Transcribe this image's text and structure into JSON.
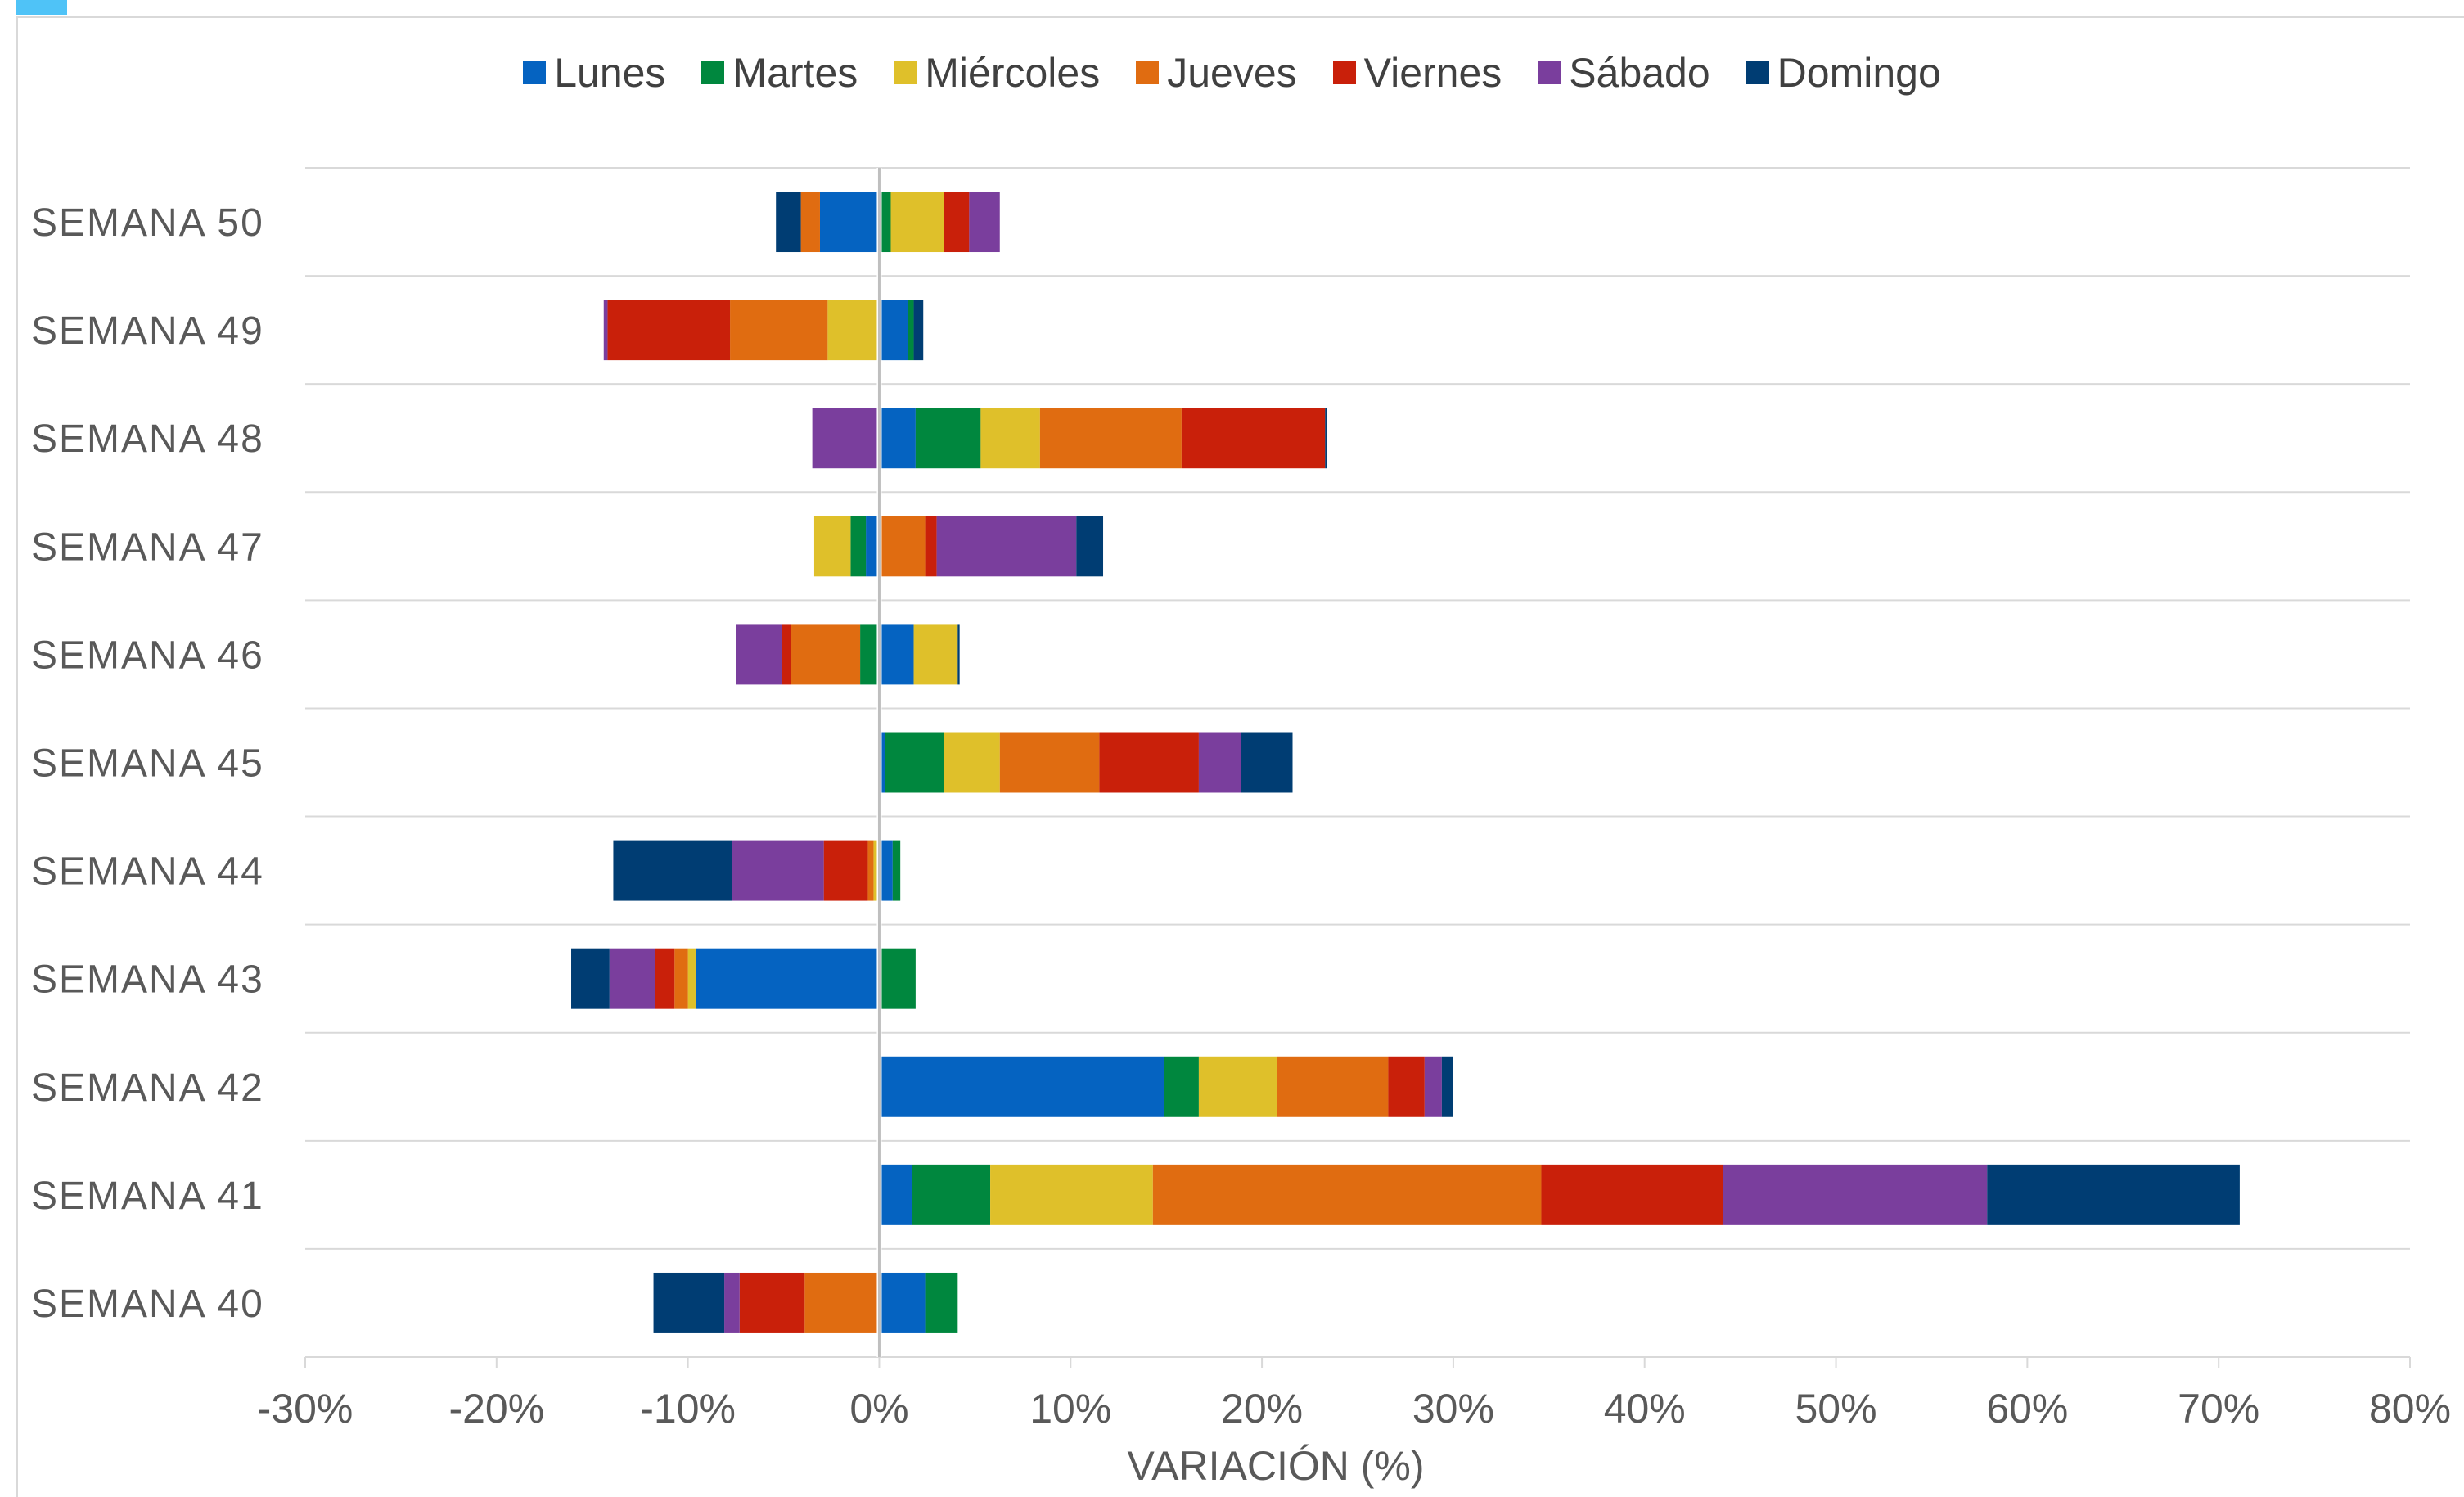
{
  "chart_data": {
    "type": "bar",
    "orientation": "horizontal",
    "stacked": true,
    "title": "",
    "xlabel": "VARIACIÓN (%)",
    "ylabel": "",
    "xlim": [
      -30,
      80
    ],
    "xticks": [
      "-30%",
      "-20%",
      "-10%",
      "0%",
      "10%",
      "20%",
      "30%",
      "40%",
      "50%",
      "60%",
      "70%",
      "80%"
    ],
    "grid": true,
    "legend_position": "top",
    "categories": [
      "SEMANA 50",
      "SEMANA 49",
      "SEMANA 48",
      "SEMANA 47",
      "SEMANA 46",
      "SEMANA 45",
      "SEMANA 44",
      "SEMANA 43",
      "SEMANA 42",
      "SEMANA 41",
      "SEMANA 40"
    ],
    "series": [
      {
        "name": "Lunes",
        "color": "#0563c1",
        "values": [
          -3.1,
          1.5,
          1.9,
          -0.7,
          1.8,
          0.3,
          0.7,
          -9.6,
          14.9,
          1.7,
          2.4
        ]
      },
      {
        "name": "Martes",
        "color": "#00873e",
        "values": [
          0.6,
          0.3,
          3.4,
          -0.8,
          -1.0,
          3.1,
          0.4,
          1.9,
          1.8,
          4.1,
          1.7
        ]
      },
      {
        "name": "Miércoles",
        "color": "#dfc02a",
        "values": [
          2.8,
          -2.7,
          3.1,
          -1.9,
          2.3,
          2.9,
          -0.3,
          -0.4,
          4.1,
          8.5,
          -0.1
        ]
      },
      {
        "name": "Jueves",
        "color": "#e06c11",
        "values": [
          -1.0,
          -5.1,
          7.4,
          2.4,
          -3.6,
          5.2,
          -0.3,
          -0.7,
          5.8,
          20.3,
          -3.8
        ]
      },
      {
        "name": "Viernes",
        "color": "#c9200a",
        "values": [
          1.3,
          -6.4,
          7.5,
          0.6,
          -0.5,
          5.2,
          -2.3,
          -1.0,
          1.9,
          9.5,
          -3.4
        ]
      },
      {
        "name": "Sábado",
        "color": "#7a3e9d",
        "values": [
          1.6,
          -0.2,
          -3.5,
          7.3,
          -2.4,
          2.2,
          -4.8,
          -2.4,
          0.9,
          13.8,
          -0.8
        ]
      },
      {
        "name": "Domingo",
        "color": "#003d73",
        "values": [
          -1.3,
          0.5,
          0.1,
          1.4,
          0.1,
          2.7,
          -6.2,
          -2.0,
          0.6,
          13.2,
          -3.7
        ]
      }
    ]
  }
}
